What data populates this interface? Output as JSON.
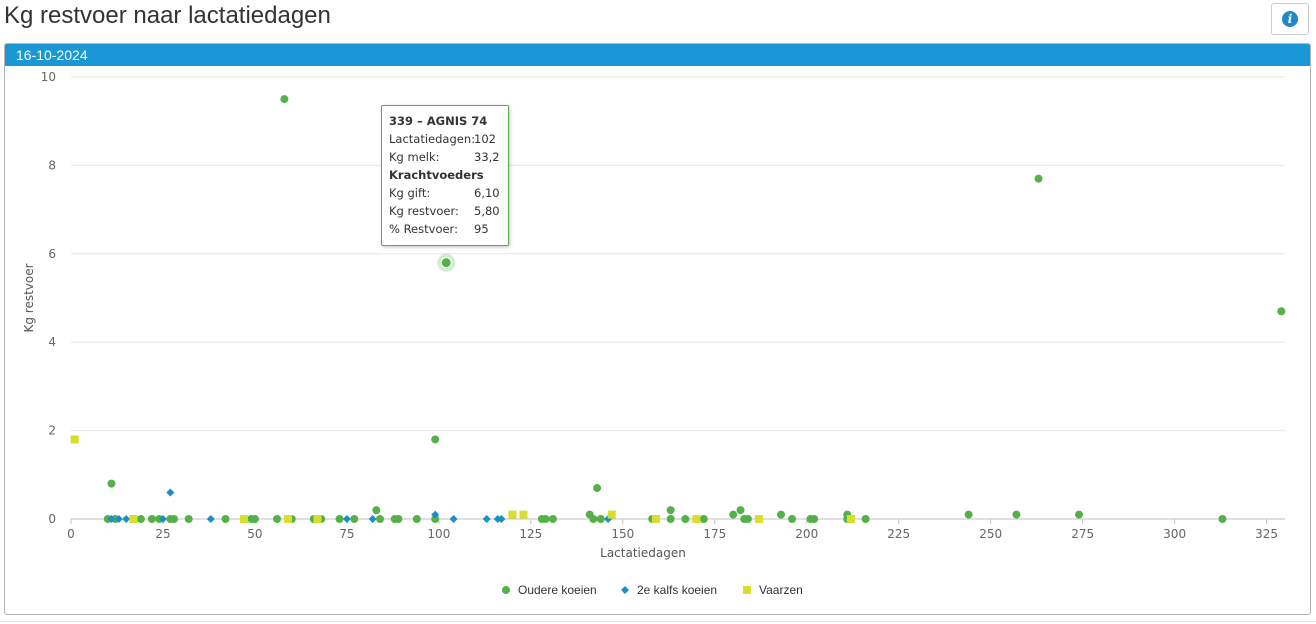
{
  "page": {
    "title": "Kg restvoer naar lactatiedagen",
    "info_icon": "info-icon",
    "panel_header": "16-10-2024"
  },
  "tooltip": {
    "title": "339 – AGNIS 74",
    "rows1": [
      {
        "label": "Lactatiedagen:",
        "value": "102"
      },
      {
        "label": "Kg melk:",
        "value": "33,2"
      }
    ],
    "section": "Krachtvoeders",
    "rows2": [
      {
        "label": "Kg gift:",
        "value": "6,10"
      },
      {
        "label": "Kg restvoer:",
        "value": "5,80"
      },
      {
        "label": "% Restvoer:",
        "value": "95"
      }
    ]
  },
  "chart_data": {
    "type": "scatter",
    "xlabel": "Lactatiedagen",
    "ylabel": "Kg restvoer",
    "xlim": [
      0,
      330
    ],
    "ylim": [
      0,
      10
    ],
    "xticks": [
      0,
      25,
      50,
      75,
      100,
      125,
      150,
      175,
      200,
      225,
      250,
      275,
      300,
      325
    ],
    "yticks": [
      0,
      2,
      4,
      6,
      8,
      10
    ],
    "grid": "horizontal",
    "legend_position": "bottom-center",
    "highlight": {
      "series": "Oudere koeien",
      "x": 102,
      "y": 5.8
    },
    "series": [
      {
        "name": "Oudere koeien",
        "color": "#55b04a",
        "marker": "circle",
        "points": [
          [
            58,
            9.5
          ],
          [
            263,
            7.7
          ],
          [
            329,
            4.7
          ],
          [
            102,
            5.8
          ],
          [
            99,
            1.8
          ],
          [
            11,
            0.8
          ],
          [
            143,
            0.7
          ],
          [
            83,
            0.2
          ],
          [
            163,
            0.2
          ],
          [
            182,
            0.2
          ],
          [
            10,
            0
          ],
          [
            12,
            0
          ],
          [
            19,
            0
          ],
          [
            22,
            0
          ],
          [
            24,
            0
          ],
          [
            27,
            0
          ],
          [
            28,
            0
          ],
          [
            32,
            0
          ],
          [
            42,
            0
          ],
          [
            49,
            0
          ],
          [
            50,
            0
          ],
          [
            56,
            0
          ],
          [
            60,
            0
          ],
          [
            66,
            0
          ],
          [
            68,
            0
          ],
          [
            73,
            0
          ],
          [
            77,
            0
          ],
          [
            84,
            0
          ],
          [
            88,
            0
          ],
          [
            89,
            0
          ],
          [
            94,
            0
          ],
          [
            99,
            0
          ],
          [
            128,
            0
          ],
          [
            129,
            0
          ],
          [
            131,
            0
          ],
          [
            141,
            0.1
          ],
          [
            142,
            0
          ],
          [
            144,
            0
          ],
          [
            158,
            0
          ],
          [
            163,
            0
          ],
          [
            167,
            0
          ],
          [
            172,
            0
          ],
          [
            180,
            0.1
          ],
          [
            183,
            0
          ],
          [
            184,
            0
          ],
          [
            193,
            0.1
          ],
          [
            196,
            0
          ],
          [
            201,
            0
          ],
          [
            202,
            0
          ],
          [
            211,
            0.1
          ],
          [
            211,
            0
          ],
          [
            216,
            0
          ],
          [
            244,
            0.1
          ],
          [
            257,
            0.1
          ],
          [
            274,
            0.1
          ],
          [
            313,
            0
          ]
        ]
      },
      {
        "name": "2e kalfs koeien",
        "color": "#1a8fc7",
        "marker": "diamond",
        "points": [
          [
            27,
            0.6
          ],
          [
            11,
            0
          ],
          [
            13,
            0
          ],
          [
            15,
            0
          ],
          [
            25,
            0
          ],
          [
            38,
            0
          ],
          [
            59,
            0
          ],
          [
            75,
            0
          ],
          [
            82,
            0
          ],
          [
            99,
            0.1
          ],
          [
            104,
            0
          ],
          [
            113,
            0
          ],
          [
            116,
            0
          ],
          [
            117,
            0
          ],
          [
            146,
            0
          ]
        ]
      },
      {
        "name": "Vaarzen",
        "color": "#d9de2c",
        "marker": "square",
        "points": [
          [
            1,
            1.8
          ],
          [
            17,
            0
          ],
          [
            47,
            0
          ],
          [
            59,
            0
          ],
          [
            67,
            0
          ],
          [
            120,
            0.1
          ],
          [
            123,
            0.1
          ],
          [
            147,
            0.1
          ],
          [
            159,
            0
          ],
          [
            170,
            0
          ],
          [
            187,
            0
          ],
          [
            212,
            0
          ]
        ]
      }
    ]
  }
}
